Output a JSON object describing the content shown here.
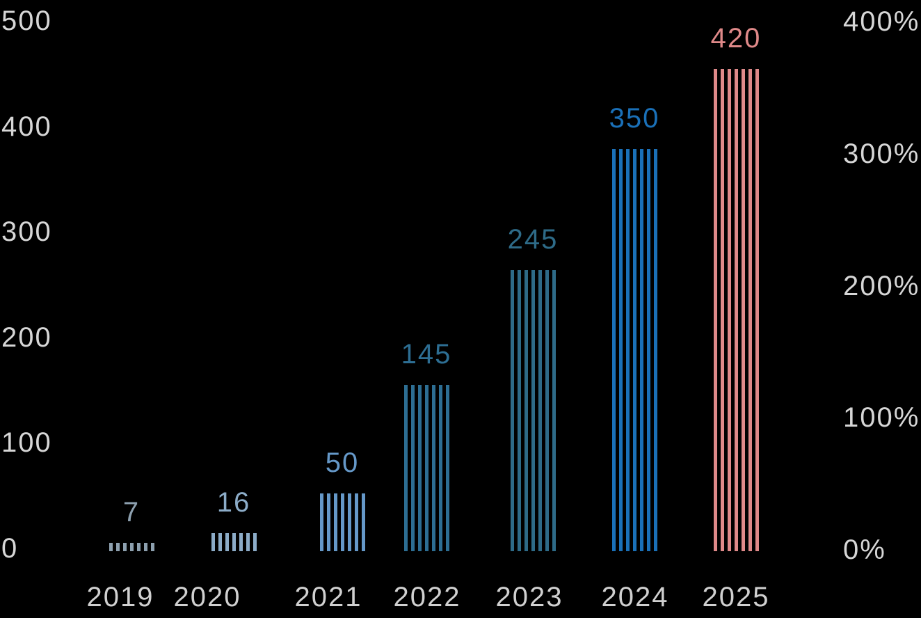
{
  "chart_data": {
    "type": "bar",
    "title": "",
    "xlabel": "",
    "ylabel": "",
    "categories": [
      "2019",
      "2020",
      "2021",
      "2022",
      "2023",
      "2024",
      "2025"
    ],
    "values": [
      7,
      16,
      50,
      145,
      245,
      350,
      420
    ],
    "value_labels": [
      "7",
      "16",
      "50",
      "145",
      "245",
      "350",
      "420"
    ],
    "bar_colors": [
      "#8da0af",
      "#8cacc8",
      "#6598c8",
      "#2d6e93",
      "#2e6b88",
      "#1a70b8",
      "#df8989"
    ],
    "bar_style": "vertical-stripes",
    "grid": false,
    "legend": false,
    "left_axis": {
      "ticks": [
        "0",
        "100",
        "200",
        "300",
        "400",
        "500"
      ],
      "range": [
        0,
        500
      ]
    },
    "right_axis": {
      "ticks": [
        "0%",
        "100%",
        "200%",
        "300%",
        "400%"
      ],
      "range": [
        0,
        400
      ]
    }
  },
  "colors": {
    "background": "#000000",
    "axis_text": "#d6d6d6"
  }
}
